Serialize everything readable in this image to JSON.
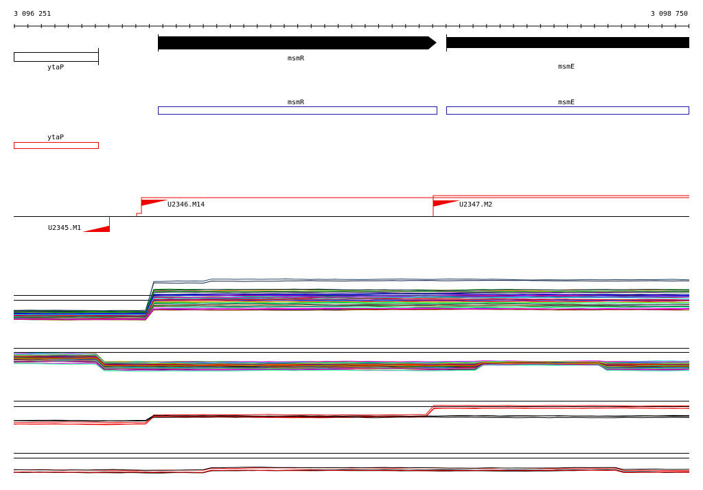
{
  "ruler": {
    "start": "3 096 251",
    "end": "3 098 750"
  },
  "genes": [
    {
      "label": "ytaP"
    },
    {
      "label": "msmR"
    },
    {
      "label": "msmE"
    }
  ],
  "cds": [
    {
      "label": "msmR"
    },
    {
      "label": "msmE"
    }
  ],
  "operons": [
    {
      "label": "ytaP"
    }
  ],
  "transcription_units": [
    {
      "label": "U2346.M14"
    },
    {
      "label": "U2347.M2"
    },
    {
      "label": "U2345.M1"
    }
  ]
}
